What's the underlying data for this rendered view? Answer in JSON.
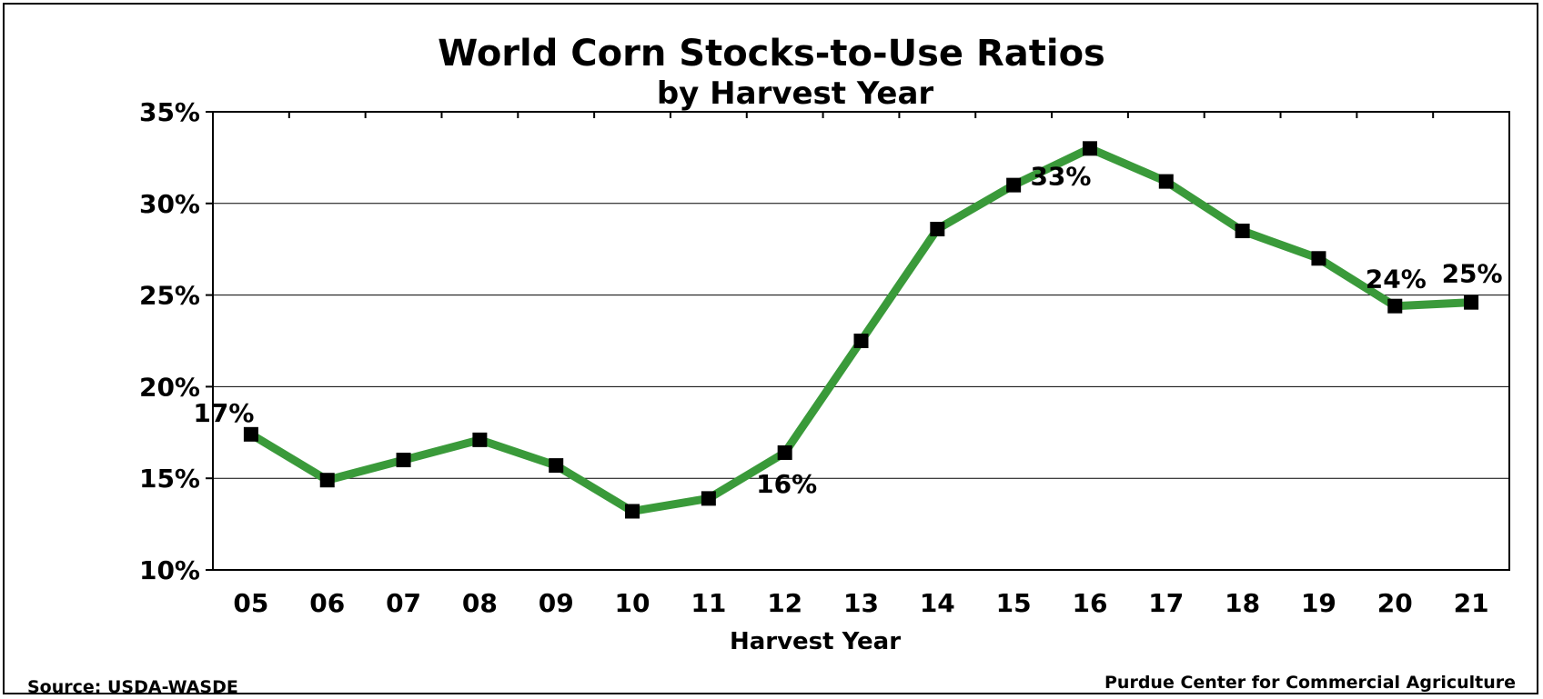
{
  "chart_data": {
    "type": "line",
    "title": "World Corn Stocks-to-Use Ratios",
    "subtitle": "by Harvest Year",
    "xlabel": "Harvest Year",
    "ylabel": "",
    "categories": [
      "05",
      "06",
      "07",
      "08",
      "09",
      "10",
      "11",
      "12",
      "13",
      "14",
      "15",
      "16",
      "17",
      "18",
      "19",
      "20",
      "21"
    ],
    "series": [
      {
        "color": "#3a9a3a",
        "values": [
          17.4,
          14.9,
          16.0,
          17.1,
          15.7,
          13.2,
          13.9,
          16.4,
          22.5,
          28.6,
          31.0,
          33.0,
          31.2,
          28.5,
          27.0,
          24.4,
          24.6
        ]
      }
    ],
    "ylim": [
      10,
      35
    ],
    "yticks": [
      10,
      15,
      20,
      25,
      30,
      35
    ],
    "ytick_labels": [
      "10%",
      "15%",
      "20%",
      "25%",
      "30%",
      "35%"
    ],
    "grid": true,
    "legend": "none",
    "annotations": [
      {
        "index": 0,
        "text": "17%"
      },
      {
        "index": 7,
        "text": "16%"
      },
      {
        "index": 11,
        "text": "33%"
      },
      {
        "index": 15,
        "text": "24%"
      },
      {
        "index": 16,
        "text": "25%"
      }
    ]
  },
  "footer": {
    "source": "Source:  USDA-WASDE",
    "credit": "Purdue Center for Commercial Agriculture"
  }
}
